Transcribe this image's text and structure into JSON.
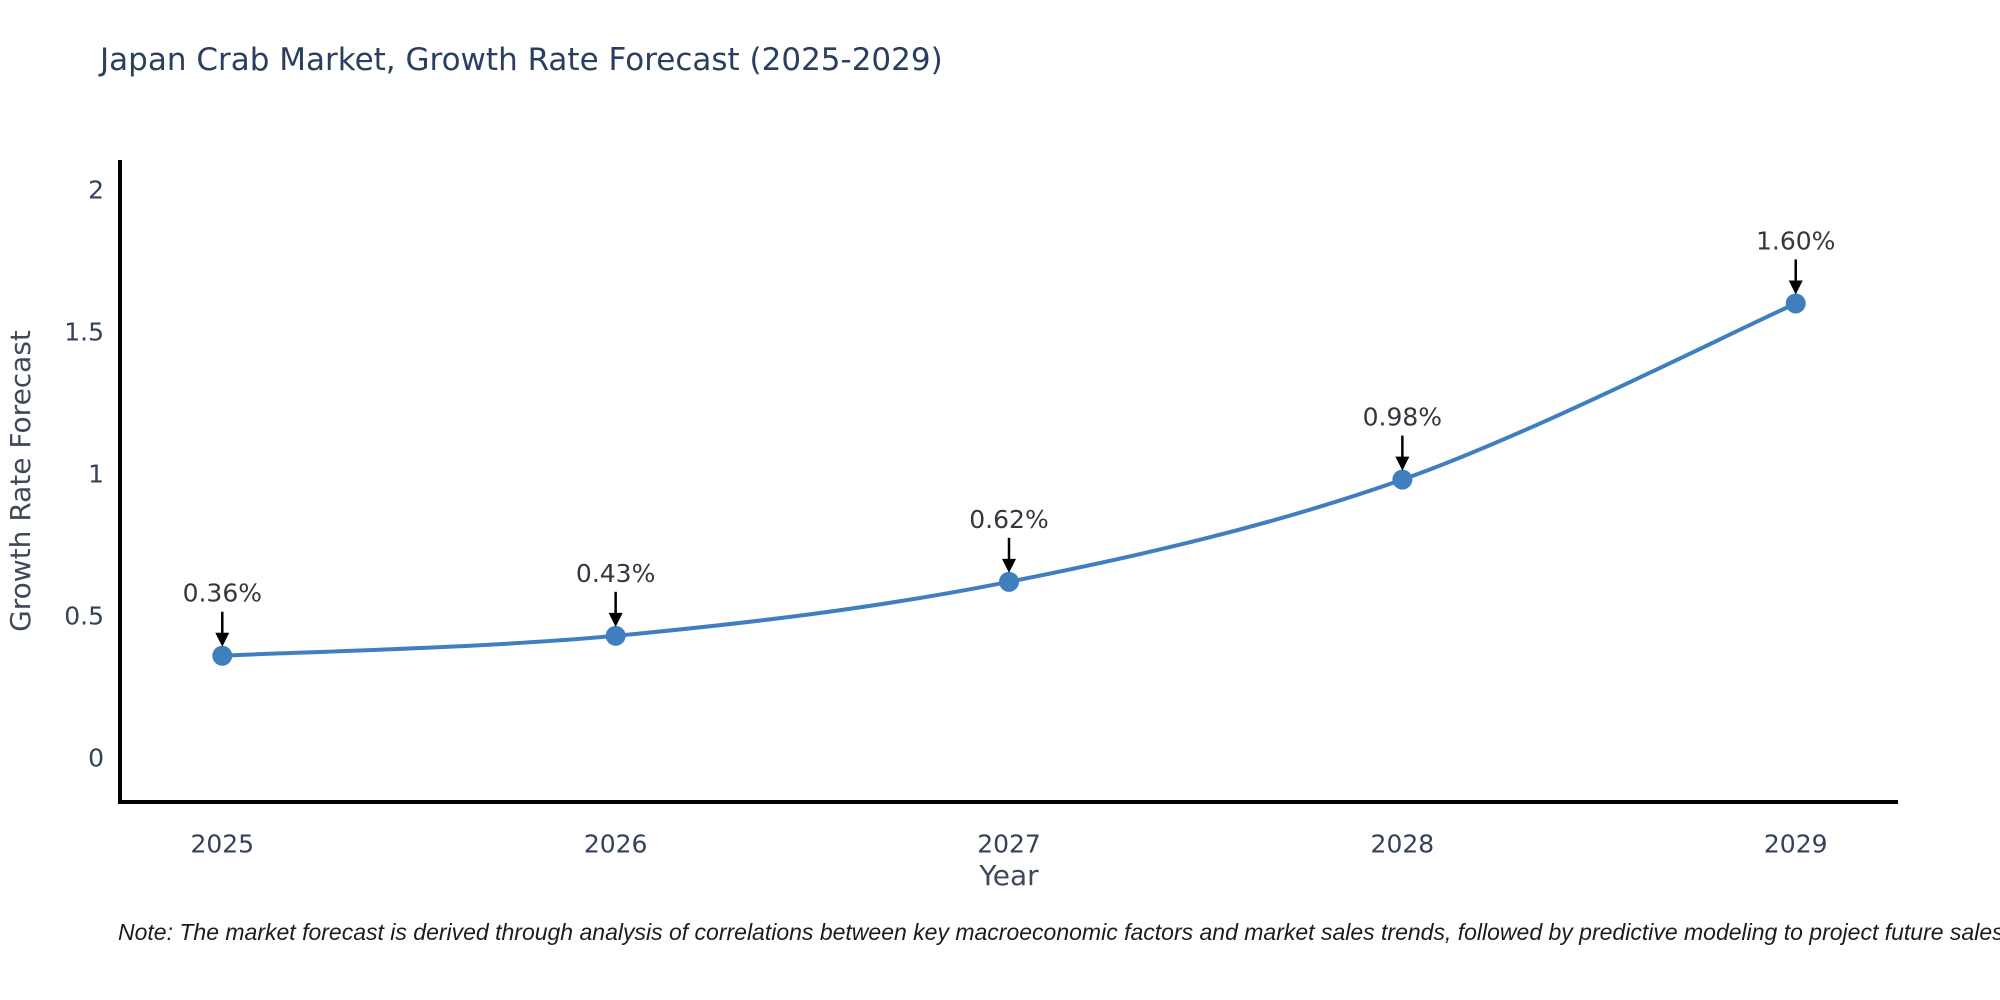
{
  "page": {
    "background": "#ffffff"
  },
  "chart_data": {
    "type": "line",
    "title": "Japan Crab Market, Growth Rate Forecast (2025-2029)",
    "xlabel": "Year",
    "ylabel": "Growth Rate Forecast",
    "categories": [
      "2025",
      "2026",
      "2027",
      "2028",
      "2029"
    ],
    "values": [
      0.36,
      0.43,
      0.62,
      0.98,
      1.6
    ],
    "point_labels": [
      "0.36%",
      "0.43%",
      "0.62%",
      "0.98%",
      "1.60%"
    ],
    "y_ticks": [
      0,
      0.5,
      1,
      1.5,
      2
    ],
    "y_tick_labels": [
      "0",
      "0.5",
      "1",
      "1.5",
      "2"
    ],
    "ylim": [
      -0.155,
      2.105
    ],
    "xlim": [
      -0.26,
      4.26
    ],
    "grid": false,
    "legend": false,
    "smooth": true,
    "line_color": "#3F7FBF",
    "marker_color": "#3F7FBF",
    "arrow_color": "#000000",
    "axis_color": "#000000",
    "title_color": "#2a3f5f",
    "tick_color": "#34415a"
  },
  "note": {
    "text": "Note: The market forecast is derived through analysis of correlations between key macroeconomic factors and market sales trends, followed by predictive modeling to project future sales"
  }
}
